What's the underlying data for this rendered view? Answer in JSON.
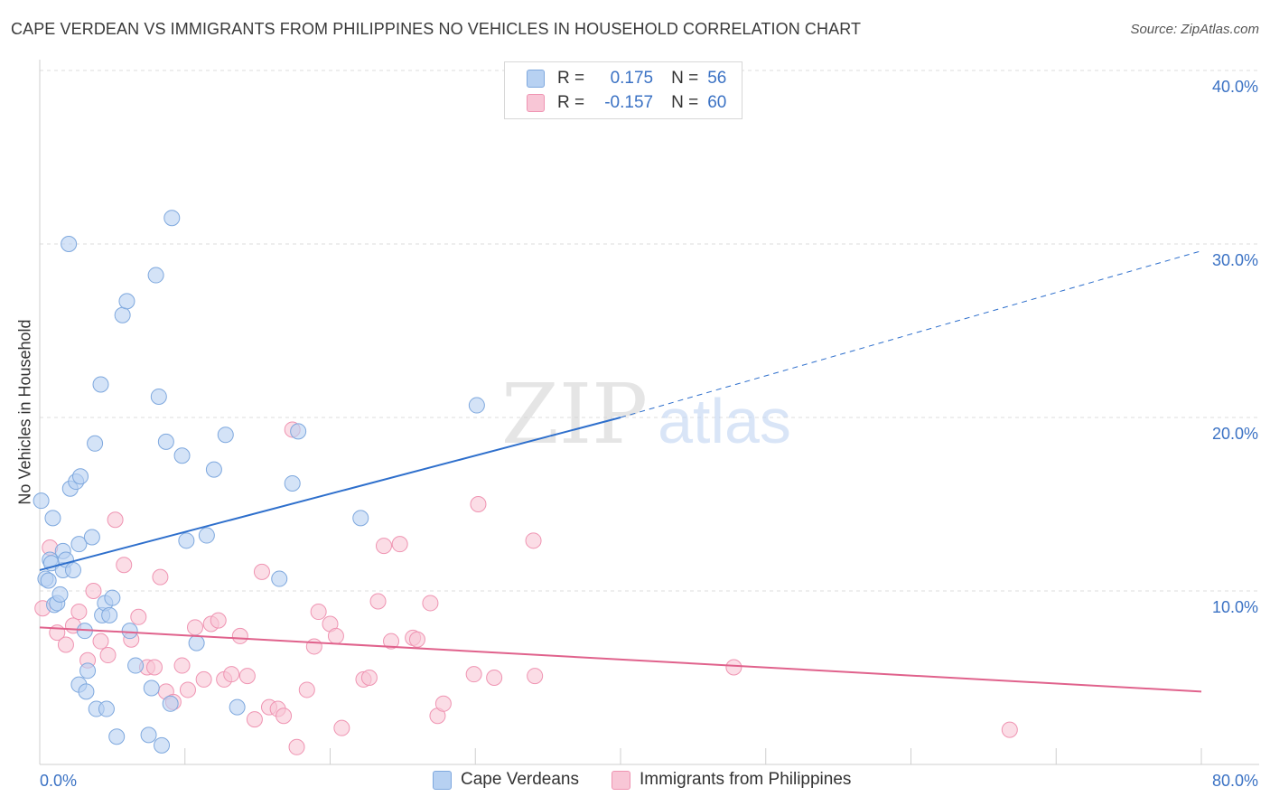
{
  "header": {
    "title": "CAPE VERDEAN VS IMMIGRANTS FROM PHILIPPINES NO VEHICLES IN HOUSEHOLD CORRELATION CHART",
    "source": "Source: ZipAtlas.com"
  },
  "watermark": {
    "zip": "ZIP",
    "atlas": "atlas"
  },
  "legend": {
    "rows": [
      {
        "r_label": "R =",
        "r_value": "0.175",
        "n_label": "N =",
        "n_value": "56"
      },
      {
        "r_label": "R =",
        "r_value": "-0.157",
        "n_label": "N =",
        "n_value": "60"
      }
    ]
  },
  "bottom_legend": {
    "items": [
      {
        "label": "Cape Verdeans"
      },
      {
        "label": "Immigrants from Philippines"
      }
    ]
  },
  "colors": {
    "blue_fill": "#b7d1f2",
    "blue_stroke": "#7ea8de",
    "blue_line": "#2e6fcc",
    "pink_fill": "#f8c6d6",
    "pink_stroke": "#ef94b2",
    "pink_line": "#e0628c",
    "tick_label": "#3b72c4",
    "grid": "#dedede"
  },
  "chart_data": {
    "type": "scatter",
    "title": "CAPE VERDEAN VS IMMIGRANTS FROM PHILIPPINES NO VEHICLES IN HOUSEHOLD CORRELATION CHART",
    "xlabel": "",
    "ylabel": "No Vehicles in Household",
    "xlim": [
      0,
      80
    ],
    "ylim": [
      0,
      40
    ],
    "x_tick_labels": [
      "0.0%",
      "80.0%"
    ],
    "y_ticks": [
      10,
      20,
      30,
      40
    ],
    "y_tick_labels": [
      "10.0%",
      "20.0%",
      "30.0%",
      "40.0%"
    ],
    "grid": true,
    "legend_position": "top-center",
    "series": [
      {
        "name": "Cape Verdeans",
        "r": 0.175,
        "n": 56,
        "trend": {
          "x0": 0,
          "y0": 11.2,
          "x1": 40,
          "y1": 20.0,
          "extend_to_x": 80,
          "extend_y": 29.6
        },
        "points": [
          [
            0.1,
            15.2
          ],
          [
            0.4,
            10.7
          ],
          [
            0.6,
            10.6
          ],
          [
            0.7,
            11.8
          ],
          [
            0.8,
            11.6
          ],
          [
            0.9,
            14.2
          ],
          [
            1.0,
            9.2
          ],
          [
            1.2,
            9.3
          ],
          [
            1.4,
            9.8
          ],
          [
            1.6,
            12.3
          ],
          [
            1.6,
            11.2
          ],
          [
            1.8,
            11.8
          ],
          [
            2.0,
            30.0
          ],
          [
            2.1,
            15.9
          ],
          [
            2.3,
            11.2
          ],
          [
            2.5,
            16.3
          ],
          [
            2.7,
            4.6
          ],
          [
            2.7,
            12.7
          ],
          [
            2.8,
            16.6
          ],
          [
            3.1,
            7.7
          ],
          [
            3.2,
            4.2
          ],
          [
            3.3,
            5.4
          ],
          [
            3.6,
            13.1
          ],
          [
            3.8,
            18.5
          ],
          [
            3.9,
            3.2
          ],
          [
            4.2,
            21.9
          ],
          [
            4.3,
            8.6
          ],
          [
            4.5,
            9.3
          ],
          [
            4.6,
            3.2
          ],
          [
            4.8,
            8.6
          ],
          [
            5.0,
            9.6
          ],
          [
            5.3,
            1.6
          ],
          [
            5.7,
            25.9
          ],
          [
            6.0,
            26.7
          ],
          [
            6.2,
            7.7
          ],
          [
            6.6,
            5.7
          ],
          [
            7.5,
            1.7
          ],
          [
            7.7,
            4.4
          ],
          [
            8.0,
            28.2
          ],
          [
            8.2,
            21.2
          ],
          [
            8.4,
            1.1
          ],
          [
            8.7,
            18.6
          ],
          [
            9.0,
            3.5
          ],
          [
            9.1,
            31.5
          ],
          [
            9.8,
            17.8
          ],
          [
            10.1,
            12.9
          ],
          [
            10.8,
            7.0
          ],
          [
            11.5,
            13.2
          ],
          [
            12.0,
            17.0
          ],
          [
            12.8,
            19.0
          ],
          [
            13.6,
            3.3
          ],
          [
            16.5,
            10.7
          ],
          [
            17.4,
            16.2
          ],
          [
            17.8,
            19.2
          ],
          [
            22.1,
            14.2
          ],
          [
            30.1,
            20.7
          ]
        ]
      },
      {
        "name": "Immigrants from Philippines",
        "r": -0.157,
        "n": 60,
        "trend": {
          "x0": 0,
          "y0": 7.9,
          "x1": 80,
          "y1": 4.2
        },
        "points": [
          [
            0.2,
            9.0
          ],
          [
            0.7,
            12.5
          ],
          [
            1.2,
            7.6
          ],
          [
            1.8,
            6.9
          ],
          [
            2.3,
            8.0
          ],
          [
            2.7,
            8.8
          ],
          [
            3.3,
            6.0
          ],
          [
            3.7,
            10.0
          ],
          [
            4.2,
            7.1
          ],
          [
            4.7,
            6.3
          ],
          [
            5.2,
            14.1
          ],
          [
            5.8,
            11.5
          ],
          [
            6.3,
            7.2
          ],
          [
            6.8,
            8.5
          ],
          [
            7.4,
            5.6
          ],
          [
            7.9,
            5.6
          ],
          [
            8.3,
            10.8
          ],
          [
            8.7,
            4.2
          ],
          [
            9.2,
            3.6
          ],
          [
            9.8,
            5.7
          ],
          [
            10.2,
            4.3
          ],
          [
            10.7,
            7.9
          ],
          [
            11.3,
            4.9
          ],
          [
            11.8,
            8.1
          ],
          [
            12.3,
            8.3
          ],
          [
            12.7,
            4.9
          ],
          [
            13.2,
            5.2
          ],
          [
            13.8,
            7.4
          ],
          [
            14.3,
            5.1
          ],
          [
            14.8,
            2.6
          ],
          [
            15.3,
            11.1
          ],
          [
            15.8,
            3.3
          ],
          [
            16.4,
            3.2
          ],
          [
            16.8,
            2.8
          ],
          [
            17.4,
            19.3
          ],
          [
            17.7,
            1.0
          ],
          [
            18.4,
            4.3
          ],
          [
            18.9,
            6.8
          ],
          [
            19.2,
            8.8
          ],
          [
            20.0,
            8.1
          ],
          [
            20.4,
            7.4
          ],
          [
            20.8,
            2.1
          ],
          [
            22.3,
            4.9
          ],
          [
            22.7,
            5.0
          ],
          [
            23.3,
            9.4
          ],
          [
            23.7,
            12.6
          ],
          [
            24.2,
            7.1
          ],
          [
            24.8,
            12.7
          ],
          [
            25.7,
            7.3
          ],
          [
            26.0,
            7.2
          ],
          [
            26.9,
            9.3
          ],
          [
            27.4,
            2.8
          ],
          [
            27.8,
            3.5
          ],
          [
            29.9,
            5.2
          ],
          [
            30.2,
            15.0
          ],
          [
            31.3,
            5.0
          ],
          [
            34.0,
            12.9
          ],
          [
            34.1,
            5.1
          ],
          [
            47.8,
            5.6
          ],
          [
            66.8,
            2.0
          ]
        ]
      }
    ]
  }
}
